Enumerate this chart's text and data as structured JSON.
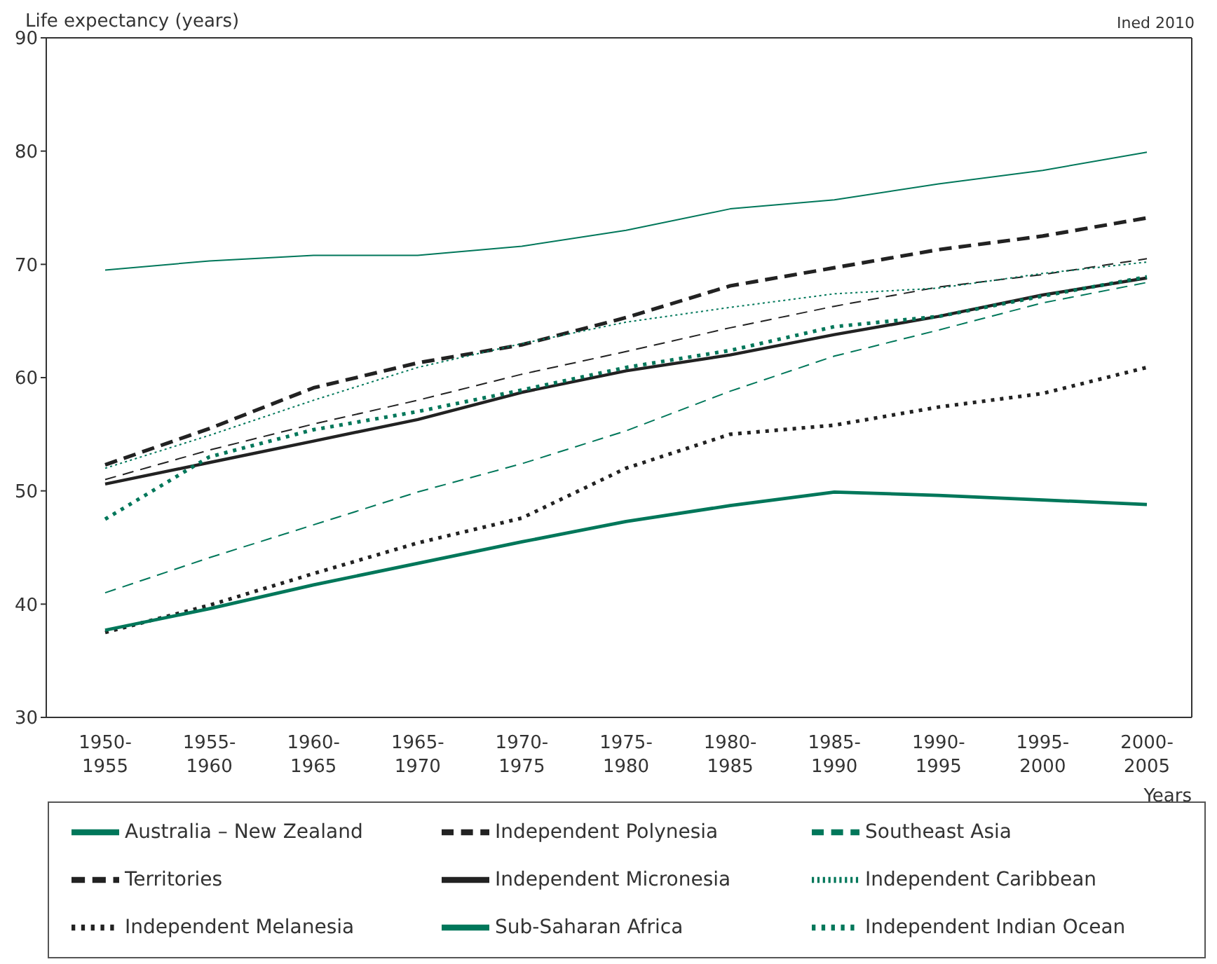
{
  "chart_data": {
    "type": "line",
    "ylabel": "Life expectancy (years)",
    "xlabel": "Years",
    "annotations": [
      "Ined 2010"
    ],
    "categories": [
      "1950-1955",
      "1955-1960",
      "1960-1965",
      "1965-1970",
      "1970-1975",
      "1975-1980",
      "1980-1985",
      "1985-1990",
      "1990-1995",
      "1995-2000",
      "2000-2005"
    ],
    "ylim": [
      30,
      90
    ],
    "yticks": [
      30,
      40,
      50,
      60,
      70,
      80,
      90
    ],
    "grid": false,
    "legend": "bottom",
    "marker": "none",
    "series": [
      {
        "name": "Australia – New Zealand",
        "color": "#00775a",
        "line_style": "solid",
        "values": [
          69.5,
          70.3,
          70.8,
          70.8,
          71.6,
          73.0,
          74.9,
          75.7,
          77.1,
          78.3,
          79.9
        ]
      },
      {
        "name": "Independent Polynesia",
        "color": "#222222",
        "line_style": "dashed",
        "values": [
          51.0,
          53.6,
          55.9,
          58.0,
          60.3,
          62.3,
          64.4,
          66.3,
          68.0,
          69.1,
          70.5
        ]
      },
      {
        "name": "Southeast Asia",
        "color": "#00775a",
        "line_style": "dashed",
        "values": [
          41.0,
          44.1,
          47.0,
          49.9,
          52.4,
          55.3,
          58.8,
          61.9,
          64.2,
          66.6,
          68.4
        ]
      },
      {
        "name": "Territories",
        "color": "#222222",
        "line_style": "dashed",
        "values": [
          52.3,
          55.5,
          59.1,
          61.3,
          62.9,
          65.3,
          68.1,
          69.7,
          71.3,
          72.5,
          74.1
        ]
      },
      {
        "name": "Independent Micronesia",
        "color": "#222222",
        "line_style": "solid",
        "values": [
          50.6,
          52.5,
          54.4,
          56.3,
          58.7,
          60.6,
          62.0,
          63.8,
          65.4,
          67.3,
          68.8
        ]
      },
      {
        "name": "Independent Caribbean",
        "color": "#00775a",
        "line_style": "dotted",
        "values": [
          52.0,
          54.9,
          58.0,
          60.9,
          63.0,
          64.9,
          66.2,
          67.4,
          67.9,
          69.2,
          70.2
        ]
      },
      {
        "name": "Independent Melanesia",
        "color": "#222222",
        "line_style": "dotted",
        "values": [
          37.5,
          39.9,
          42.7,
          45.4,
          47.6,
          52.0,
          55.0,
          55.8,
          57.4,
          58.6,
          60.9
        ]
      },
      {
        "name": "Sub-Saharan Africa",
        "color": "#00775a",
        "line_style": "solid",
        "values": [
          37.7,
          39.6,
          41.7,
          43.6,
          45.5,
          47.3,
          48.7,
          49.9,
          49.6,
          49.2,
          48.8
        ]
      },
      {
        "name": "Independent Indian Ocean",
        "color": "#00775a",
        "line_style": "dotted",
        "values": [
          47.5,
          53.0,
          55.4,
          57.0,
          58.9,
          60.9,
          62.4,
          64.5,
          65.4,
          67.2,
          68.9
        ]
      }
    ]
  }
}
